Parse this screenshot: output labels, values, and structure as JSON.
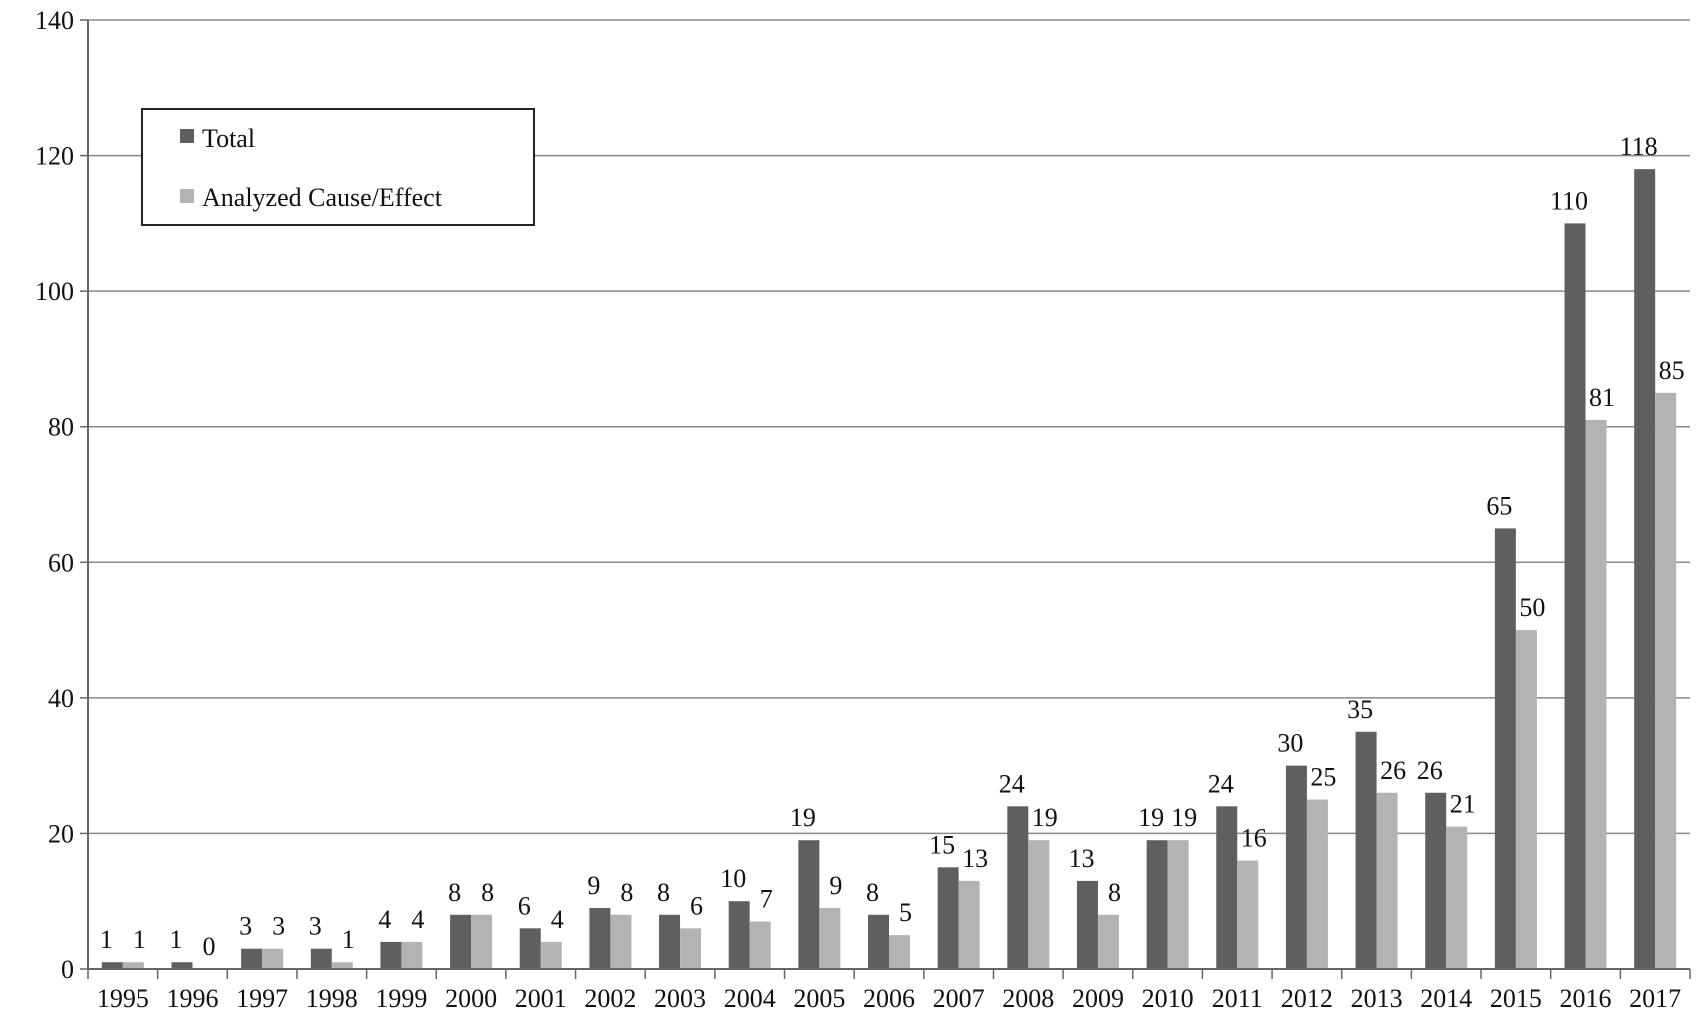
{
  "chart_data": {
    "type": "bar",
    "categories": [
      "1995",
      "1996",
      "1997",
      "1998",
      "1999",
      "2000",
      "2001",
      "2002",
      "2003",
      "2004",
      "2005",
      "2006",
      "2007",
      "2008",
      "2009",
      "2010",
      "2011",
      "2012",
      "2013",
      "2014",
      "2015",
      "2016",
      "2017"
    ],
    "series": [
      {
        "name": "Total",
        "color": "#5f5f5f",
        "values": [
          1,
          1,
          3,
          3,
          4,
          8,
          6,
          9,
          8,
          10,
          19,
          8,
          15,
          24,
          13,
          19,
          24,
          30,
          35,
          26,
          65,
          110,
          118
        ]
      },
      {
        "name": "Analyzed Cause/Effect",
        "color": "#b3b3b3",
        "values": [
          1,
          0,
          3,
          1,
          4,
          8,
          4,
          8,
          6,
          7,
          9,
          5,
          13,
          19,
          8,
          19,
          16,
          25,
          26,
          21,
          50,
          81,
          85
        ]
      }
    ],
    "ylim": [
      0,
      140
    ],
    "yticks": [
      "0",
      "20",
      "40",
      "60",
      "80",
      "100",
      "120",
      "140"
    ],
    "grid": true,
    "legend": "top-left",
    "title": "",
    "xlabel": "",
    "ylabel": ""
  }
}
